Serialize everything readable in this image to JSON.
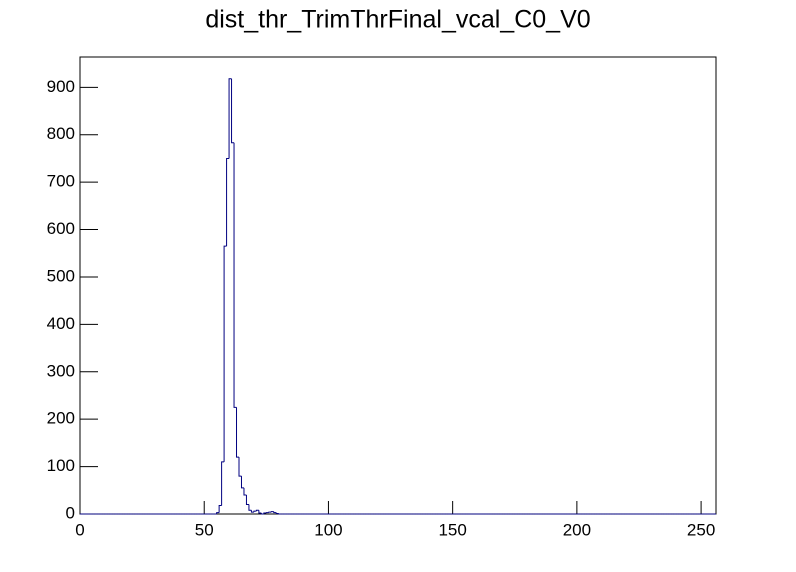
{
  "chart_data": {
    "type": "histogram",
    "title": "dist_thr_TrimThrFinal_vcal_C0_V0",
    "color": "#000080",
    "bins": [
      0,
      1,
      2,
      3,
      4,
      5,
      6,
      7,
      8,
      9,
      10,
      11,
      12,
      13,
      14,
      15,
      16,
      17,
      18,
      19,
      20,
      21,
      22,
      23,
      24,
      25,
      26,
      27,
      28,
      29,
      30,
      31,
      32,
      33,
      34,
      35,
      36,
      37,
      38,
      39,
      40,
      41,
      42,
      43,
      44,
      45,
      46,
      47,
      48,
      49,
      50,
      51,
      52,
      53,
      54,
      55,
      56,
      57,
      58,
      59,
      60,
      61,
      62,
      63,
      64,
      65,
      66,
      67,
      68,
      69,
      70,
      71,
      72,
      73,
      74,
      75,
      76,
      77,
      78,
      79,
      80,
      81,
      82,
      83,
      84,
      85,
      86,
      87,
      88,
      89,
      90,
      91,
      92,
      93,
      94,
      95,
      96,
      97,
      98,
      99,
      100,
      101,
      102,
      103,
      104,
      105,
      106,
      107,
      108,
      109,
      110,
      111,
      112,
      113,
      114,
      115,
      116,
      117,
      118,
      119,
      120,
      121,
      122,
      123,
      124,
      125,
      126,
      127,
      128,
      129,
      130,
      131,
      132,
      133,
      134,
      135,
      136,
      137,
      138,
      139,
      140,
      141,
      142,
      143,
      144,
      145,
      146,
      147,
      148,
      149,
      150,
      151,
      152,
      153,
      154,
      155,
      156,
      157,
      158,
      159,
      160,
      161,
      162,
      163,
      164,
      165,
      166,
      167,
      168,
      169,
      170,
      171,
      172,
      173,
      174,
      175,
      176,
      177,
      178,
      179,
      180,
      181,
      182,
      183,
      184,
      185,
      186,
      187,
      188,
      189,
      190,
      191,
      192,
      193,
      194,
      195,
      196,
      197,
      198,
      199,
      200,
      201,
      202,
      203,
      204,
      205,
      206,
      207,
      208,
      209,
      210,
      211,
      212,
      213,
      214,
      215,
      216,
      217,
      218,
      219,
      220,
      221,
      222,
      223,
      224,
      225,
      226,
      227,
      228,
      229,
      230,
      231,
      232,
      233,
      234,
      235,
      236,
      237,
      238,
      239,
      240,
      241,
      242,
      243,
      244,
      245,
      246,
      247,
      248,
      249,
      250,
      251,
      252,
      253,
      254,
      255,
      256
    ],
    "counts": [
      0,
      0,
      0,
      0,
      0,
      0,
      0,
      0,
      0,
      0,
      0,
      0,
      0,
      0,
      0,
      0,
      0,
      0,
      0,
      0,
      0,
      0,
      0,
      0,
      0,
      0,
      0,
      0,
      0,
      0,
      0,
      0,
      0,
      0,
      0,
      0,
      0,
      0,
      0,
      0,
      0,
      0,
      0,
      0,
      0,
      0,
      0,
      0,
      0,
      0,
      0,
      0,
      0,
      0,
      0,
      3,
      18,
      110,
      565,
      750,
      918,
      783,
      225,
      120,
      80,
      55,
      40,
      20,
      8,
      4,
      6,
      8,
      2,
      0,
      2,
      3,
      4,
      5,
      3,
      1,
      0,
      0,
      0,
      0,
      0,
      0,
      0,
      0,
      0,
      0,
      0,
      0,
      0,
      0,
      0,
      0,
      0,
      0,
      0,
      0,
      0,
      0,
      0,
      0,
      0,
      0,
      0,
      0,
      0,
      0,
      0,
      0,
      0,
      0,
      0,
      0,
      0,
      0,
      0,
      0,
      0,
      0,
      0,
      0,
      0,
      0,
      0,
      0,
      0,
      0,
      0,
      0,
      0,
      0,
      0,
      0,
      0,
      0,
      0,
      0,
      0,
      0,
      0,
      0,
      0,
      0,
      0,
      0,
      0,
      0,
      0,
      0,
      0,
      0,
      0,
      0,
      0,
      0,
      0,
      0,
      0,
      0,
      0,
      0,
      0,
      0,
      0,
      0,
      0,
      0,
      0,
      0,
      0,
      0,
      0,
      0,
      0,
      0,
      0,
      0,
      0,
      0,
      0,
      0,
      0,
      0,
      0,
      0,
      0,
      0,
      0,
      0,
      0,
      0,
      0,
      0,
      0,
      0,
      0,
      0,
      0,
      0,
      0,
      0,
      0,
      0,
      0,
      0,
      0,
      0,
      0,
      0,
      0,
      0,
      0,
      0,
      0,
      0,
      0,
      0,
      0,
      0,
      0,
      0,
      0,
      0,
      0,
      0,
      0,
      0,
      0,
      0,
      0,
      0,
      0,
      0,
      0,
      0,
      0,
      0,
      0,
      0,
      0,
      0,
      0,
      0,
      0,
      0,
      0,
      0,
      0,
      0,
      0,
      0,
      0,
      0
    ],
    "xlim": [
      0,
      256
    ],
    "ylim": [
      0,
      964
    ],
    "xticks": [
      0,
      50,
      100,
      150,
      200,
      250
    ],
    "yticks": [
      0,
      100,
      200,
      300,
      400,
      500,
      600,
      700,
      800,
      900
    ]
  }
}
